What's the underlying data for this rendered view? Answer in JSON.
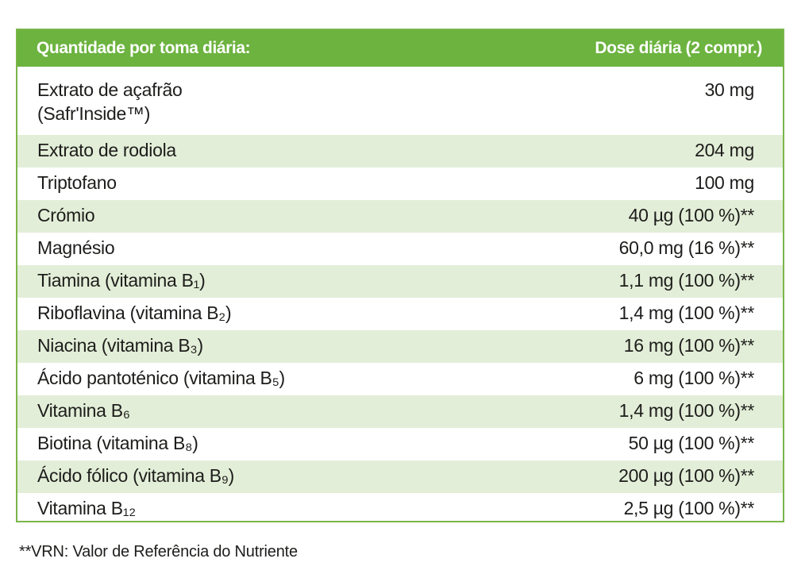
{
  "header": {
    "left": "Quantidade por toma diária:",
    "right": "Dose diária (2 compr.)"
  },
  "colors": {
    "header_bg": "#6cb33f",
    "border": "#7ab648",
    "stripe": "#e3eed8"
  },
  "rows": [
    {
      "name": "Extrato de açafrão\n(Safr'Inside™)",
      "dose": "30 mg"
    },
    {
      "name": "Extrato de rodiola",
      "dose": "204 mg"
    },
    {
      "name": "Triptofano",
      "dose": "100 mg"
    },
    {
      "name": "Crómio",
      "dose": "40 µg (100 %)**"
    },
    {
      "name": "Magnésio",
      "dose": "60,0 mg (16 %)**"
    },
    {
      "name": "Tiamina (vitamina B₁)",
      "dose": "1,1 mg (100 %)**"
    },
    {
      "name": "Riboflavina (vitamina B₂)",
      "dose": "1,4 mg (100 %)**"
    },
    {
      "name": "Niacina (vitamina B₃)",
      "dose": "16 mg (100 %)**"
    },
    {
      "name": "Ácido pantoténico (vitamina B₅)",
      "dose": "6 mg (100 %)**"
    },
    {
      "name": "Vitamina B₆",
      "dose": "1,4 mg (100 %)**"
    },
    {
      "name": "Biotina (vitamina B₈)",
      "dose": "50 µg (100 %)**"
    },
    {
      "name": "Ácido fólico (vitamina B₉)",
      "dose": "200 µg (100 %)**"
    },
    {
      "name": "Vitamina B₁₂",
      "dose": "2,5 µg (100 %)**"
    }
  ],
  "footnote": "**VRN: Valor de Referência do Nutriente"
}
